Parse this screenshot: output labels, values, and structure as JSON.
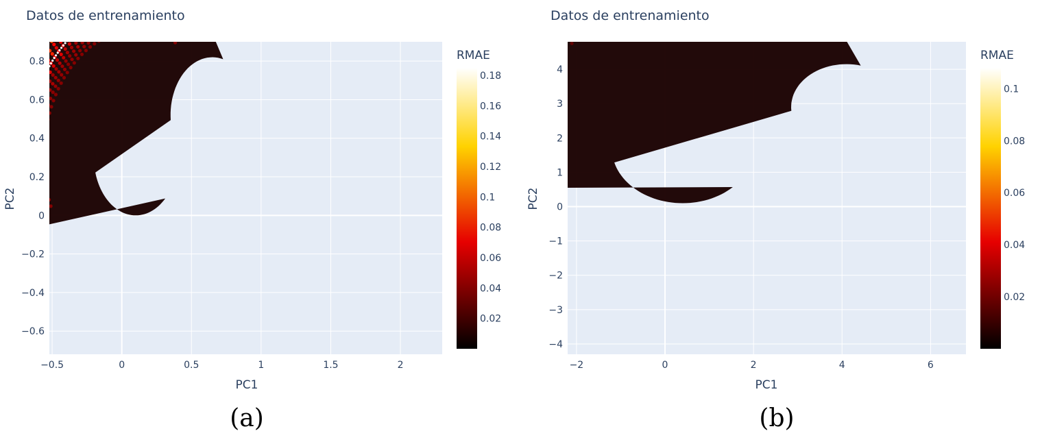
{
  "chart_data": [
    {
      "type": "scatter",
      "panel_label": "(a)",
      "title": "Datos de entrenamiento",
      "xlabel": "PC1",
      "ylabel": "PC2",
      "xlim": [
        -0.52,
        2.3
      ],
      "ylim": [
        -0.72,
        0.9
      ],
      "x_ticks": [
        -0.5,
        0,
        0.5,
        1,
        1.5,
        2
      ],
      "x_tick_labels": [
        "−0.5",
        "0",
        "0.5",
        "1",
        "1.5",
        "2"
      ],
      "y_ticks": [
        -0.6,
        -0.4,
        -0.2,
        0,
        0.2,
        0.4,
        0.6,
        0.8
      ],
      "y_tick_labels": [
        "−0.6",
        "−0.4",
        "−0.2",
        "0",
        "0.2",
        "0.4",
        "0.6",
        "0.8"
      ],
      "grid": true,
      "colorbar": {
        "title": "RMAE",
        "colorscale": "hot",
        "range": [
          0,
          0.185
        ],
        "ticks": [
          0.02,
          0.04,
          0.06,
          0.08,
          0.1,
          0.12,
          0.14,
          0.16,
          0.18
        ],
        "tick_labels": [
          "0.02",
          "0.04",
          "0.06",
          "0.08",
          "0.1",
          "0.12",
          "0.14",
          "0.16",
          "0.18"
        ]
      },
      "region": {
        "center": [
          0.1,
          0.3
        ],
        "r_inner": 0.3,
        "r_outer": 0.95,
        "r_points_start": 0.66,
        "outer_angle_deg": [
          204,
          63
        ],
        "inner_notch": {
          "center": [
            0.65,
            0.52
          ],
          "radius": 0.3
        },
        "white_curve_radius": 0.78,
        "rmae_low": 0.015,
        "rmae_high": 0.16
      }
    },
    {
      "type": "scatter",
      "panel_label": "(b)",
      "title": "Datos de entrenamiento",
      "xlabel": "PC1",
      "ylabel": "PC2",
      "xlim": [
        -2.2,
        6.8
      ],
      "ylim": [
        -4.3,
        4.8
      ],
      "x_ticks": [
        -2,
        0,
        2,
        4,
        6
      ],
      "x_tick_labels": [
        "−2",
        "0",
        "2",
        "4",
        "6"
      ],
      "y_ticks": [
        -4,
        -3,
        -2,
        -1,
        0,
        1,
        2,
        3,
        4
      ],
      "y_tick_labels": [
        "−4",
        "−3",
        "−2",
        "−1",
        "0",
        "1",
        "2",
        "3",
        "4"
      ],
      "grid": true,
      "colorbar": {
        "title": "RMAE",
        "colorscale": "hot",
        "range": [
          0,
          0.108
        ],
        "ticks": [
          0.02,
          0.04,
          0.06,
          0.08,
          0.1
        ],
        "tick_labels": [
          "0.02",
          "0.04",
          "0.06",
          "0.08",
          "0.1"
        ]
      },
      "region": {
        "center": [
          0.4,
          1.7
        ],
        "r_inner": 1.6,
        "r_outer": 5.6,
        "r_points_start": 3.95,
        "outer_angle_deg": [
          192,
          58
        ],
        "inner_notch": {
          "center": [
            4.1,
            2.9
          ],
          "radius": 1.25
        },
        "white_curve_radius": 4.5,
        "rmae_low": 0.008,
        "rmae_high": 0.06
      }
    }
  ]
}
